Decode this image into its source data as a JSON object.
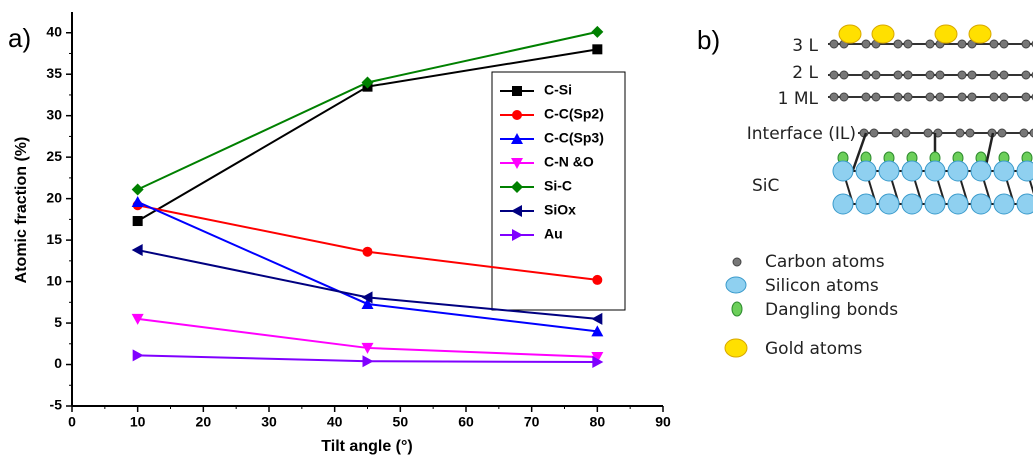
{
  "chart_data": {
    "type": "line",
    "panel_label": "a)",
    "x_label": "Tilt angle (°)",
    "y_label": "Atomic fraction (%)",
    "x": [
      10,
      45,
      80
    ],
    "series": [
      {
        "name": "C-Si",
        "color": "#000000",
        "marker": "square",
        "values": [
          17.3,
          33.5,
          38.0
        ]
      },
      {
        "name": "C-C(Sp2)",
        "color": "#ff0000",
        "marker": "circle",
        "values": [
          19.2,
          13.6,
          10.2
        ]
      },
      {
        "name": "C-C(Sp3)",
        "color": "#0000ff",
        "marker": "triangle-up",
        "values": [
          19.6,
          7.3,
          4.0
        ]
      },
      {
        "name": "C-N &O",
        "color": "#ff00ff",
        "marker": "triangle-down",
        "values": [
          5.5,
          2.0,
          0.9
        ]
      },
      {
        "name": "Si-C",
        "color": "#008000",
        "marker": "diamond",
        "values": [
          21.1,
          34.0,
          40.1
        ]
      },
      {
        "name": "SiOx",
        "color": "#000080",
        "marker": "triangle-left",
        "values": [
          13.8,
          8.1,
          5.5
        ]
      },
      {
        "name": "Au",
        "color": "#8000ff",
        "marker": "triangle-right",
        "values": [
          1.1,
          0.4,
          0.3
        ]
      }
    ],
    "xlim": [
      0,
      90
    ],
    "xticks": [
      0,
      10,
      20,
      30,
      40,
      50,
      60,
      70,
      80,
      90
    ],
    "ylim": [
      -5,
      42.5
    ],
    "yticks": [
      -5,
      0,
      5,
      10,
      15,
      20,
      25,
      30,
      35,
      40
    ],
    "grid": false,
    "legend_position": "upper right"
  },
  "diagram": {
    "panel_label": "b)",
    "layers": [
      "3 L",
      "2 L",
      "1 ML",
      "Interface (IL)"
    ],
    "substrate": "SiC",
    "legend": [
      "Carbon atoms",
      "Silicon atoms",
      "Dangling bonds",
      "Gold atoms"
    ]
  }
}
